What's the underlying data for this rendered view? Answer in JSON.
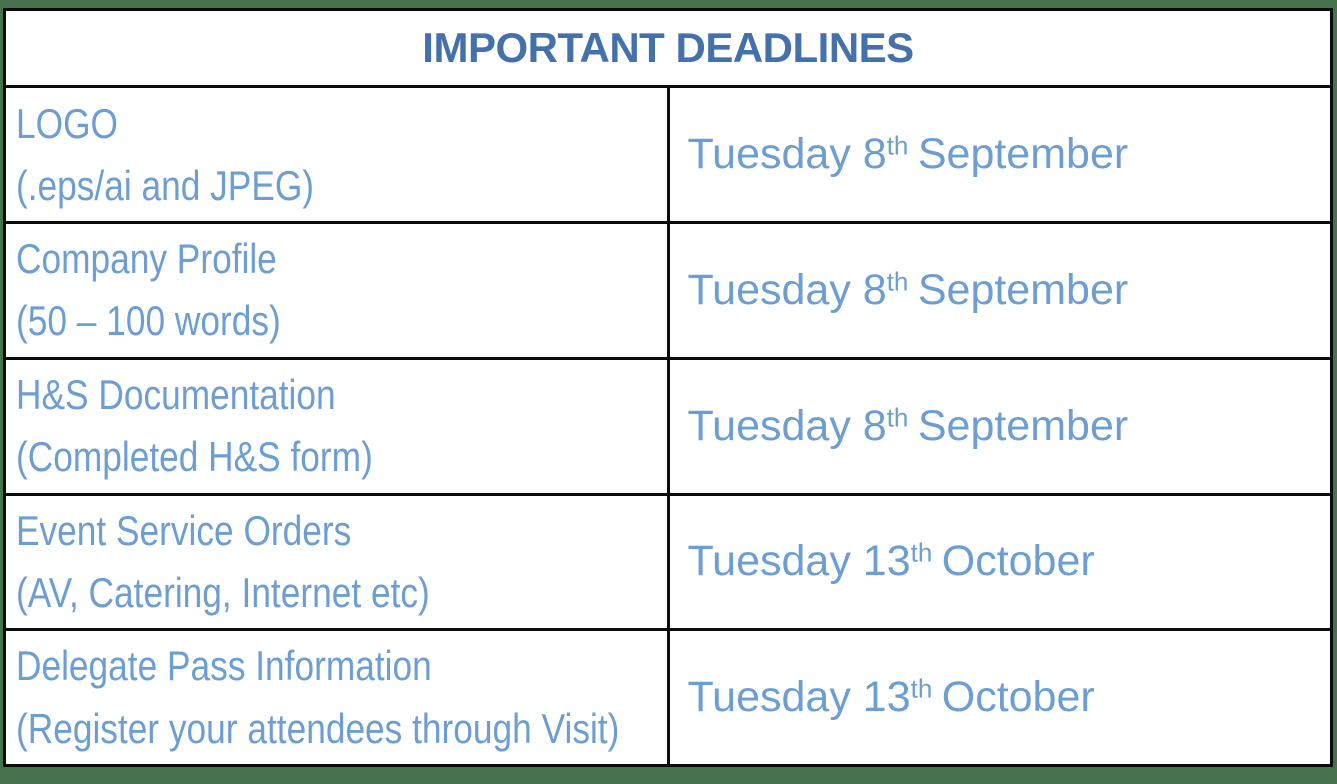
{
  "colors": {
    "frame_green": "#47704C",
    "border_black": "#0B0B0B",
    "title_blue": "#4471AC",
    "body_blue": "#6D9ED3",
    "cell_background": "#FFFFFF"
  },
  "table": {
    "title": "IMPORTANT DEADLINES",
    "rows": [
      {
        "item": "LOGO",
        "detail": "(.eps/ai and JPEG)",
        "deadline": {
          "prefix": "Tuesday 8",
          "superscript": "th",
          "suffix": "September"
        }
      },
      {
        "item": "Company Profile",
        "detail": "(50 – 100 words)",
        "deadline": {
          "prefix": "Tuesday 8",
          "superscript": "th",
          "suffix": "September"
        }
      },
      {
        "item": "H&S Documentation",
        "detail": "(Completed H&S form)",
        "deadline": {
          "prefix": "Tuesday 8",
          "superscript": "th",
          "suffix": "September"
        }
      },
      {
        "item": "Event Service Orders",
        "detail": "(AV, Catering, Internet etc)",
        "deadline": {
          "prefix": "Tuesday 13",
          "superscript": "th",
          "suffix": "October"
        }
      },
      {
        "item": "Delegate Pass Information",
        "detail": "(Register your attendees through Visit)",
        "deadline": {
          "prefix": "Tuesday 13",
          "superscript": "th",
          "suffix": "October"
        }
      }
    ]
  }
}
